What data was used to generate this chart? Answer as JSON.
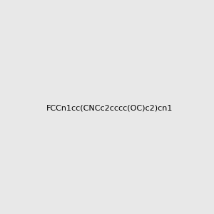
{
  "smiles": "FCCn1cc(CNCc2cccc(OC)c2)cn1",
  "image_size": 300,
  "background_color": "#e8e8e8"
}
